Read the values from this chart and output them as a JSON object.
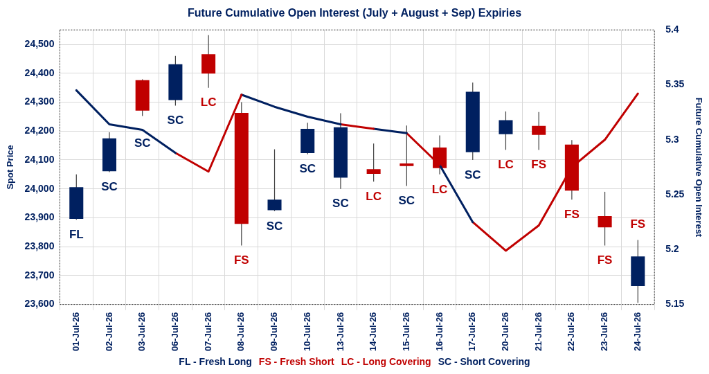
{
  "chart_data": {
    "type": "candlestick",
    "title": "Future Cumulative Open Interest (July + August + Sep) Expiries",
    "ylabel": "Spot Price",
    "y2label": "Future Cumulative Open Interest",
    "categories": [
      "01-Jul-26",
      "02-Jul-26",
      "03-Jul-26",
      "06-Jul-26",
      "07-Jul-26",
      "08-Jul-26",
      "09-Jul-26",
      "10-Jul-26",
      "13-Jul-26",
      "14-Jul-26",
      "15-Jul-26",
      "16-Jul-26",
      "17-Jul-26",
      "20-Jul-26",
      "21-Jul-26",
      "22-Jul-26",
      "23-Jul-26",
      "24-Jul-26"
    ],
    "ohlc": [
      [
        23896,
        24050,
        23893,
        24006
      ],
      [
        24061,
        24196,
        24058,
        24175
      ],
      [
        24376,
        24379,
        24252,
        24271
      ],
      [
        24307,
        24460,
        24288,
        24431
      ],
      [
        24466,
        24532,
        24350,
        24399
      ],
      [
        24263,
        24300,
        23804,
        23879
      ],
      [
        23926,
        24137,
        23923,
        23963
      ],
      [
        24124,
        24229,
        24120,
        24208
      ],
      [
        24039,
        24262,
        24000,
        24213
      ],
      [
        24068,
        24157,
        24025,
        24052
      ],
      [
        24088,
        24219,
        24010,
        24079
      ],
      [
        24143,
        24185,
        24050,
        24072
      ],
      [
        24127,
        24368,
        24100,
        24336
      ],
      [
        24189,
        24268,
        24135,
        24238
      ],
      [
        24218,
        24266,
        24135,
        24187
      ],
      [
        24153,
        24169,
        23963,
        23994
      ],
      [
        23906,
        23990,
        23804,
        23867
      ],
      [
        23664,
        23823,
        23606,
        23766
      ]
    ],
    "colors": [
      "#002060",
      "#002060",
      "#c00000",
      "#002060",
      "#c00000",
      "#c00000",
      "#002060",
      "#002060",
      "#002060",
      "#c00000",
      "#c00000",
      "#c00000",
      "#002060",
      "#002060",
      "#c00000",
      "#c00000",
      "#c00000",
      "#002060"
    ],
    "series": [
      {
        "type": "line",
        "axis": "y2",
        "color": "#002060",
        "values": [
          5.345,
          5.314,
          5.309,
          5.288,
          null,
          null,
          null,
          null,
          null,
          null,
          null,
          null,
          null,
          null,
          null,
          null,
          null,
          null
        ]
      },
      {
        "type": "line",
        "axis": "y2",
        "color": "#c00000",
        "values": [
          null,
          null,
          null,
          5.288,
          5.271,
          5.341,
          null,
          null,
          null,
          null,
          null,
          null,
          null,
          null,
          null,
          null,
          null,
          null
        ]
      },
      {
        "type": "line",
        "axis": "y2",
        "color": "#002060",
        "values": [
          null,
          null,
          null,
          null,
          null,
          5.341,
          5.33,
          5.321,
          5.314,
          null,
          null,
          null,
          null,
          null,
          null,
          null,
          null,
          null
        ]
      },
      {
        "type": "line",
        "axis": "y2",
        "color": "#c00000",
        "values": [
          null,
          null,
          null,
          null,
          null,
          null,
          null,
          null,
          5.314,
          5.31,
          null,
          null,
          null,
          null,
          null,
          null,
          null,
          null
        ]
      },
      {
        "type": "line",
        "axis": "y2",
        "color": "#002060",
        "values": [
          null,
          null,
          null,
          null,
          null,
          null,
          null,
          null,
          null,
          5.31,
          5.306,
          null,
          null,
          null,
          null,
          null,
          null,
          null
        ]
      },
      {
        "type": "line",
        "axis": "y2",
        "color": "#c00000",
        "values": [
          null,
          null,
          null,
          null,
          null,
          null,
          null,
          null,
          null,
          null,
          5.306,
          5.277,
          null,
          null,
          null,
          null,
          null,
          null
        ]
      },
      {
        "type": "line",
        "axis": "y2",
        "color": "#002060",
        "values": [
          null,
          null,
          null,
          null,
          null,
          null,
          null,
          null,
          null,
          null,
          null,
          5.277,
          5.225,
          null,
          null,
          null,
          null,
          null
        ]
      },
      {
        "type": "line",
        "axis": "y2",
        "color": "#c00000",
        "values": [
          null,
          null,
          null,
          null,
          null,
          null,
          null,
          null,
          null,
          null,
          null,
          null,
          5.225,
          5.199,
          5.222,
          5.275,
          5.3,
          5.342
        ]
      }
    ],
    "ylim": [
      23600,
      24550
    ],
    "yticks": [
      {
        "value": 23600,
        "label": "23,600"
      },
      {
        "value": 23700,
        "label": "23,700"
      },
      {
        "value": 23800,
        "label": "23,800"
      },
      {
        "value": 23900,
        "label": "23,900"
      },
      {
        "value": 24000,
        "label": "24,000"
      },
      {
        "value": 24100,
        "label": "24,100"
      },
      {
        "value": 24200,
        "label": "24,200"
      },
      {
        "value": 24300,
        "label": "24,300"
      },
      {
        "value": 24400,
        "label": "24,400"
      },
      {
        "value": 24500,
        "label": "24,500"
      }
    ],
    "y2lim": [
      5.15,
      5.4
    ],
    "y2ticks": [
      5.15,
      5.2,
      5.25,
      5.3,
      5.35,
      5.4
    ],
    "grid": true,
    "annotations": [
      "FL",
      "SC",
      "SC",
      "SC",
      "LC",
      "FS",
      "SC",
      "SC",
      "SC",
      "LC",
      "SC",
      "LC",
      "SC",
      "LC",
      "FS",
      "FS",
      "FS",
      "FS",
      "FL - Fresh Long",
      "FS - Fresh Short",
      "LC - Long Covering",
      "SC - Short Covering"
    ]
  }
}
